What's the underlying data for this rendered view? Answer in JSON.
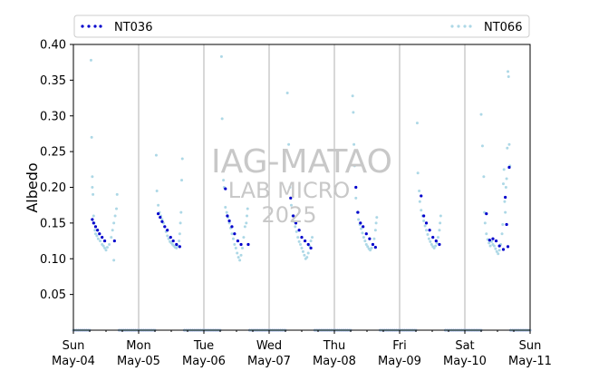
{
  "chart_data": {
    "type": "scatter",
    "xlabel": "",
    "ylabel": "Albedo",
    "ylim": [
      0.0,
      0.4
    ],
    "yticks": [
      "0.05",
      "0.10",
      "0.15",
      "0.20",
      "0.25",
      "0.30",
      "0.35",
      "0.40"
    ],
    "xlim_days": [
      0,
      7
    ],
    "xticks": [
      {
        "day": "Sun",
        "date": "May-04"
      },
      {
        "day": "Mon",
        "date": "May-05"
      },
      {
        "day": "Tue",
        "date": "May-06"
      },
      {
        "day": "Wed",
        "date": "May-07"
      },
      {
        "day": "Thu",
        "date": "May-08"
      },
      {
        "day": "Fri",
        "date": "May-09"
      },
      {
        "day": "Sat",
        "date": "May-10"
      },
      {
        "day": "Sun",
        "date": "May-11"
      }
    ],
    "grid": "vertical at day boundaries",
    "legend_placement": "top (above plot)",
    "watermark": {
      "line1": "IAG-MATAO",
      "line2": "LAB MICRO",
      "line3": "2025"
    },
    "series": [
      {
        "name": "NT036",
        "color": "#0000cc",
        "daily_points": [
          [
            [
              0.29,
              0.155
            ],
            [
              0.31,
              0.15
            ],
            [
              0.34,
              0.145
            ],
            [
              0.37,
              0.14
            ],
            [
              0.4,
              0.135
            ],
            [
              0.44,
              0.13
            ],
            [
              0.48,
              0.125
            ],
            [
              0.63,
              0.125
            ]
          ],
          [
            [
              0.3,
              0.163
            ],
            [
              0.33,
              0.158
            ],
            [
              0.36,
              0.152
            ],
            [
              0.4,
              0.145
            ],
            [
              0.44,
              0.14
            ],
            [
              0.49,
              0.13
            ],
            [
              0.53,
              0.125
            ],
            [
              0.58,
              0.12
            ],
            [
              0.63,
              0.117
            ]
          ],
          [
            [
              0.33,
              0.198
            ],
            [
              0.36,
              0.16
            ],
            [
              0.39,
              0.153
            ],
            [
              0.43,
              0.145
            ],
            [
              0.47,
              0.135
            ],
            [
              0.52,
              0.125
            ],
            [
              0.57,
              0.12
            ],
            [
              0.68,
              0.12
            ]
          ],
          [
            [
              0.33,
              0.185
            ],
            [
              0.37,
              0.16
            ],
            [
              0.41,
              0.15
            ],
            [
              0.46,
              0.14
            ],
            [
              0.5,
              0.13
            ],
            [
              0.55,
              0.125
            ],
            [
              0.6,
              0.12
            ],
            [
              0.64,
              0.115
            ]
          ],
          [
            [
              0.33,
              0.2
            ],
            [
              0.36,
              0.165
            ],
            [
              0.4,
              0.15
            ],
            [
              0.44,
              0.145
            ],
            [
              0.49,
              0.135
            ],
            [
              0.54,
              0.128
            ],
            [
              0.59,
              0.12
            ],
            [
              0.63,
              0.116
            ]
          ],
          [
            [
              0.33,
              0.188
            ],
            [
              0.37,
              0.16
            ],
            [
              0.41,
              0.15
            ],
            [
              0.46,
              0.14
            ],
            [
              0.51,
              0.13
            ],
            [
              0.56,
              0.125
            ],
            [
              0.61,
              0.12
            ]
          ],
          [
            [
              0.33,
              0.163
            ],
            [
              0.38,
              0.126
            ],
            [
              0.43,
              0.128
            ],
            [
              0.48,
              0.125
            ],
            [
              0.53,
              0.118
            ],
            [
              0.59,
              0.113
            ],
            [
              0.62,
              0.186
            ],
            [
              0.64,
              0.148
            ],
            [
              0.66,
              0.117
            ],
            [
              0.68,
              0.228
            ]
          ]
        ]
      },
      {
        "name": "NT066",
        "color": "#add8e6",
        "daily_points": [
          [
            [
              0.27,
              0.378
            ],
            [
              0.28,
              0.27
            ],
            [
              0.29,
              0.215
            ],
            [
              0.29,
              0.2
            ],
            [
              0.3,
              0.19
            ],
            [
              0.31,
              0.16
            ],
            [
              0.32,
              0.15
            ],
            [
              0.33,
              0.14
            ],
            [
              0.34,
              0.135
            ],
            [
              0.36,
              0.132
            ],
            [
              0.38,
              0.128
            ],
            [
              0.41,
              0.125
            ],
            [
              0.44,
              0.12
            ],
            [
              0.46,
              0.118
            ],
            [
              0.48,
              0.115
            ],
            [
              0.5,
              0.112
            ],
            [
              0.52,
              0.116
            ],
            [
              0.55,
              0.12
            ],
            [
              0.58,
              0.13
            ],
            [
              0.6,
              0.14
            ],
            [
              0.62,
              0.15
            ],
            [
              0.64,
              0.16
            ],
            [
              0.66,
              0.17
            ],
            [
              0.67,
              0.19
            ],
            [
              0.62,
              0.098
            ]
          ],
          [
            [
              0.27,
              0.245
            ],
            [
              0.28,
              0.195
            ],
            [
              0.3,
              0.175
            ],
            [
              0.32,
              0.165
            ],
            [
              0.34,
              0.16
            ],
            [
              0.36,
              0.155
            ],
            [
              0.38,
              0.15
            ],
            [
              0.4,
              0.145
            ],
            [
              0.42,
              0.138
            ],
            [
              0.44,
              0.132
            ],
            [
              0.46,
              0.128
            ],
            [
              0.48,
              0.124
            ],
            [
              0.5,
              0.122
            ],
            [
              0.52,
              0.12
            ],
            [
              0.54,
              0.118
            ],
            [
              0.56,
              0.116
            ],
            [
              0.58,
              0.115
            ],
            [
              0.6,
              0.118
            ],
            [
              0.62,
              0.125
            ],
            [
              0.63,
              0.135
            ],
            [
              0.64,
              0.15
            ],
            [
              0.65,
              0.165
            ],
            [
              0.66,
              0.21
            ],
            [
              0.67,
              0.24
            ]
          ],
          [
            [
              0.27,
              0.383
            ],
            [
              0.28,
              0.296
            ],
            [
              0.3,
              0.21
            ],
            [
              0.31,
              0.2
            ],
            [
              0.33,
              0.172
            ],
            [
              0.35,
              0.165
            ],
            [
              0.37,
              0.158
            ],
            [
              0.39,
              0.15
            ],
            [
              0.41,
              0.143
            ],
            [
              0.43,
              0.135
            ],
            [
              0.45,
              0.128
            ],
            [
              0.47,
              0.12
            ],
            [
              0.49,
              0.115
            ],
            [
              0.51,
              0.108
            ],
            [
              0.53,
              0.102
            ],
            [
              0.55,
              0.098
            ],
            [
              0.57,
              0.105
            ],
            [
              0.59,
              0.115
            ],
            [
              0.61,
              0.13
            ],
            [
              0.63,
              0.145
            ],
            [
              0.65,
              0.15
            ],
            [
              0.66,
              0.16
            ],
            [
              0.67,
              0.17
            ]
          ],
          [
            [
              0.28,
              0.332
            ],
            [
              0.3,
              0.26
            ],
            [
              0.32,
              0.2
            ],
            [
              0.34,
              0.175
            ],
            [
              0.36,
              0.16
            ],
            [
              0.38,
              0.152
            ],
            [
              0.4,
              0.145
            ],
            [
              0.42,
              0.138
            ],
            [
              0.44,
              0.13
            ],
            [
              0.46,
              0.124
            ],
            [
              0.48,
              0.12
            ],
            [
              0.5,
              0.115
            ],
            [
              0.52,
              0.11
            ],
            [
              0.54,
              0.105
            ],
            [
              0.56,
              0.1
            ],
            [
              0.58,
              0.102
            ],
            [
              0.6,
              0.108
            ],
            [
              0.62,
              0.118
            ],
            [
              0.64,
              0.125
            ],
            [
              0.66,
              0.13
            ]
          ],
          [
            [
              0.28,
              0.328
            ],
            [
              0.29,
              0.305
            ],
            [
              0.3,
              0.26
            ],
            [
              0.31,
              0.23
            ],
            [
              0.33,
              0.185
            ],
            [
              0.35,
              0.165
            ],
            [
              0.37,
              0.155
            ],
            [
              0.39,
              0.148
            ],
            [
              0.41,
              0.142
            ],
            [
              0.43,
              0.136
            ],
            [
              0.45,
              0.13
            ],
            [
              0.47,
              0.125
            ],
            [
              0.49,
              0.12
            ],
            [
              0.51,
              0.117
            ],
            [
              0.53,
              0.114
            ],
            [
              0.55,
              0.112
            ],
            [
              0.57,
              0.115
            ],
            [
              0.59,
              0.12
            ],
            [
              0.61,
              0.128
            ],
            [
              0.63,
              0.14
            ],
            [
              0.64,
              0.15
            ],
            [
              0.65,
              0.158
            ]
          ],
          [
            [
              0.27,
              0.29
            ],
            [
              0.28,
              0.22
            ],
            [
              0.3,
              0.195
            ],
            [
              0.31,
              0.18
            ],
            [
              0.33,
              0.168
            ],
            [
              0.35,
              0.16
            ],
            [
              0.37,
              0.153
            ],
            [
              0.39,
              0.146
            ],
            [
              0.41,
              0.14
            ],
            [
              0.43,
              0.134
            ],
            [
              0.45,
              0.128
            ],
            [
              0.47,
              0.124
            ],
            [
              0.49,
              0.12
            ],
            [
              0.51,
              0.117
            ],
            [
              0.53,
              0.115
            ],
            [
              0.55,
              0.118
            ],
            [
              0.57,
              0.122
            ],
            [
              0.59,
              0.13
            ],
            [
              0.61,
              0.14
            ],
            [
              0.62,
              0.15
            ],
            [
              0.63,
              0.16
            ]
          ],
          [
            [
              0.25,
              0.302
            ],
            [
              0.27,
              0.258
            ],
            [
              0.29,
              0.215
            ],
            [
              0.3,
              0.165
            ],
            [
              0.31,
              0.15
            ],
            [
              0.33,
              0.135
            ],
            [
              0.35,
              0.127
            ],
            [
              0.37,
              0.122
            ],
            [
              0.39,
              0.118
            ],
            [
              0.41,
              0.124
            ],
            [
              0.43,
              0.12
            ],
            [
              0.45,
              0.118
            ],
            [
              0.47,
              0.114
            ],
            [
              0.49,
              0.11
            ],
            [
              0.51,
              0.107
            ],
            [
              0.53,
              0.112
            ],
            [
              0.55,
              0.12
            ],
            [
              0.57,
              0.135
            ],
            [
              0.58,
              0.148
            ],
            [
              0.59,
              0.205
            ],
            [
              0.6,
              0.225
            ],
            [
              0.61,
              0.18
            ],
            [
              0.62,
              0.165
            ],
            [
              0.63,
              0.2
            ],
            [
              0.64,
              0.212
            ],
            [
              0.65,
              0.255
            ],
            [
              0.66,
              0.362
            ],
            [
              0.67,
              0.355
            ],
            [
              0.68,
              0.26
            ],
            [
              0.69,
              0.23
            ]
          ]
        ]
      }
    ]
  }
}
